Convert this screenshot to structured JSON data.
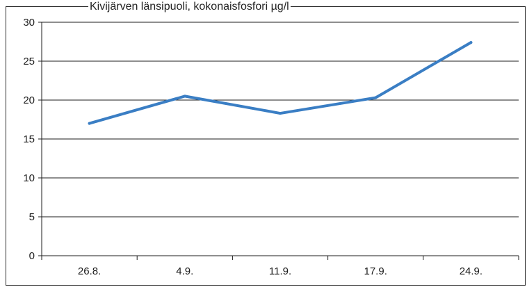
{
  "chart_data": {
    "type": "line",
    "title": "Kivijärven länsipuoli, kokonaisfosfori µg/l",
    "xlabel": "",
    "ylabel": "",
    "categories": [
      "26.8.",
      "4.9.",
      "11.9.",
      "17.9.",
      "24.9."
    ],
    "series": [
      {
        "values": [
          17.0,
          20.5,
          18.3,
          20.3,
          27.4
        ],
        "color": "#3a7ec4"
      }
    ],
    "ylim": [
      0,
      30
    ],
    "yticks": [
      0,
      5,
      10,
      15,
      20,
      25,
      30
    ],
    "grid": "horizontal",
    "legend": "none"
  }
}
